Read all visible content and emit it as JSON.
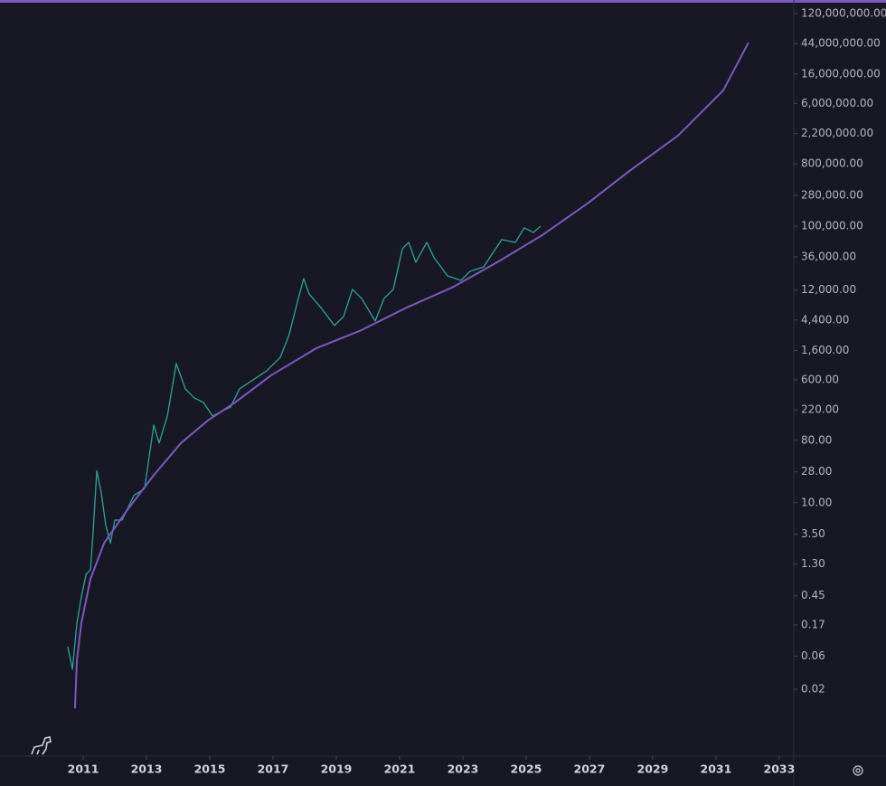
{
  "chart_data": {
    "type": "line",
    "log_y": true,
    "xlim": [
      2008.37,
      2033.46
    ],
    "ylim": [
      0.00215,
      188000000
    ],
    "xticks": [
      2011,
      2013,
      2015,
      2017,
      2019,
      2021,
      2023,
      2025,
      2027,
      2029,
      2031,
      2033
    ],
    "yticks": [
      {
        "value": 120000000,
        "label": "120,000,000.00"
      },
      {
        "value": 44000000,
        "label": "44,000,000.00"
      },
      {
        "value": 16000000,
        "label": "16,000,000.00"
      },
      {
        "value": 6000000,
        "label": "6,000,000.00"
      },
      {
        "value": 2200000,
        "label": "2,200,000.00"
      },
      {
        "value": 800000,
        "label": "800,000.00"
      },
      {
        "value": 280000,
        "label": "280,000.00"
      },
      {
        "value": 100000,
        "label": "100,000.00"
      },
      {
        "value": 36000,
        "label": "36,000.00"
      },
      {
        "value": 12000,
        "label": "12,000.00"
      },
      {
        "value": 4400,
        "label": "4,400.00"
      },
      {
        "value": 1600,
        "label": "1,600.00"
      },
      {
        "value": 600,
        "label": "600.00"
      },
      {
        "value": 220,
        "label": "220.00"
      },
      {
        "value": 80,
        "label": "80.00"
      },
      {
        "value": 28,
        "label": "28.00"
      },
      {
        "value": 10,
        "label": "10.00"
      },
      {
        "value": 3.5,
        "label": "3.50"
      },
      {
        "value": 1.3,
        "label": "1.30"
      },
      0.45,
      0.17,
      0.06,
      0.02
    ],
    "series": [
      {
        "color": "#26a69a",
        "x": [
          2010.51,
          2010.66,
          2010.8,
          2010.94,
          2011.09,
          2011.23,
          2011.31,
          2011.43,
          2011.57,
          2011.71,
          2011.86,
          2012.0,
          2012.23,
          2012.6,
          2012.94,
          2013.23,
          2013.4,
          2013.66,
          2013.94,
          2014.23,
          2014.51,
          2014.8,
          2015.09,
          2015.37,
          2015.66,
          2015.94,
          2016.37,
          2016.8,
          2017.23,
          2017.51,
          2017.8,
          2017.97,
          2018.14,
          2018.51,
          2018.94,
          2019.23,
          2019.51,
          2019.8,
          2020.23,
          2020.51,
          2020.8,
          2021.09,
          2021.29,
          2021.51,
          2021.86,
          2022.09,
          2022.51,
          2022.94,
          2023.23,
          2023.66,
          2023.94,
          2024.23,
          2024.66,
          2024.94,
          2025.23,
          2025.46
        ],
        "values": [
          0.083,
          0.039,
          0.18,
          0.43,
          0.92,
          1.07,
          3.6,
          29,
          14,
          4.8,
          2.6,
          5.6,
          5.6,
          12.7,
          16,
          133,
          73,
          180,
          1030,
          444,
          328,
          282,
          180,
          209,
          243,
          444,
          600,
          811,
          1270,
          2700,
          9040,
          17500,
          10500,
          6680,
          3660,
          4940,
          12200,
          9040,
          4260,
          9040,
          12200,
          47400,
          58500,
          30200,
          58500,
          35100,
          19200,
          16500,
          22300,
          25900,
          40700,
          64100,
          58500,
          94800,
          81500,
          100700
        ]
      },
      {
        "color": "#7e57c2",
        "x": [
          2010.74,
          2010.8,
          2010.94,
          2011.23,
          2011.66,
          2012.37,
          2013.23,
          2014.09,
          2014.94,
          2015.8,
          2016.94,
          2018.37,
          2019.8,
          2021.23,
          2022.66,
          2024.09,
          2025.51,
          2026.94,
          2028.23,
          2029.8,
          2031.23,
          2032.03
        ],
        "values": [
          0.0106,
          0.052,
          0.18,
          0.79,
          2.6,
          7.6,
          25,
          73,
          155,
          282,
          697,
          1720,
          3150,
          6680,
          13000,
          30200,
          74500,
          214000,
          614000,
          2050000,
          9250000,
          45700000
        ]
      }
    ]
  }
}
